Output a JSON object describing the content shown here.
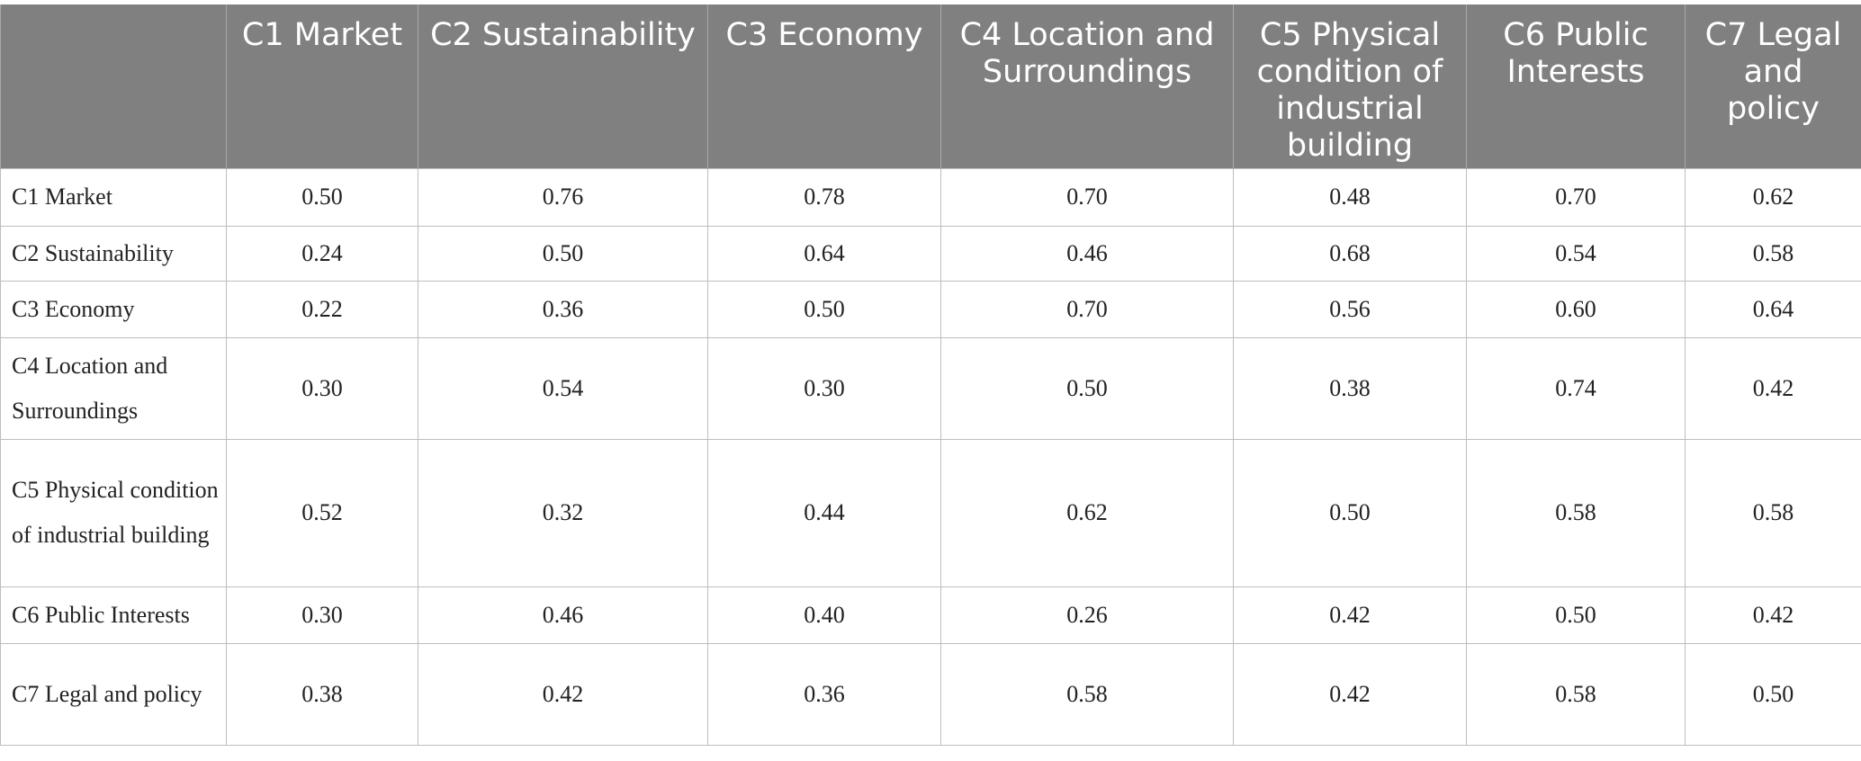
{
  "table": {
    "columns": [
      "C1 Market",
      "C2 Sustainability",
      "C3 Economy",
      "C4 Location and Surroundings",
      "C5 Physical condition of industrial building",
      "C6 Public Interests",
      "C7 Legal and policy"
    ],
    "rows": [
      [
        "C1 Market",
        "0.50",
        "0.76",
        "0.78",
        "0.70",
        "0.48",
        "0.70",
        "0.62"
      ],
      [
        "C2 Sustainability",
        "0.24",
        "0.50",
        "0.64",
        "0.46",
        "0.68",
        "0.54",
        "0.58"
      ],
      [
        "C3 Economy",
        "0.22",
        "0.36",
        "0.50",
        "0.70",
        "0.56",
        "0.60",
        "0.64"
      ],
      [
        "C4 Location and Surroundings",
        "0.30",
        "0.54",
        "0.30",
        "0.50",
        "0.38",
        "0.74",
        "0.42"
      ],
      [
        "C5 Physical condition of industrial building",
        "0.52",
        "0.32",
        "0.44",
        "0.62",
        "0.50",
        "0.58",
        "0.58"
      ],
      [
        "C6 Public Interests",
        "0.30",
        "0.46",
        "0.40",
        "0.26",
        "0.42",
        "0.50",
        "0.42"
      ],
      [
        "C7 Legal and policy",
        "0.38",
        "0.42",
        "0.36",
        "0.58",
        "0.42",
        "0.58",
        "0.50"
      ]
    ]
  }
}
